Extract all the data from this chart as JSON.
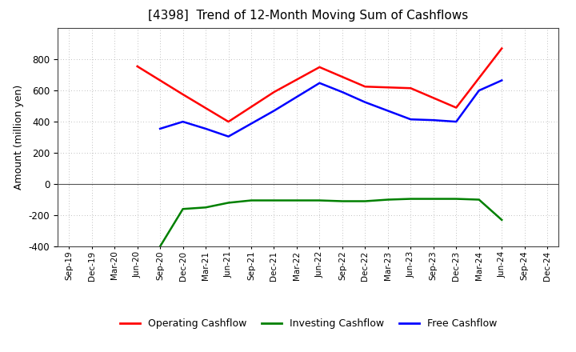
{
  "title": "[4398]  Trend of 12-Month Moving Sum of Cashflows",
  "ylabel": "Amount (million yen)",
  "ylim": [
    -400,
    1000
  ],
  "yticks": [
    -400,
    -200,
    0,
    200,
    400,
    600,
    800
  ],
  "x_labels": [
    "Sep-19",
    "Dec-19",
    "Mar-20",
    "Jun-20",
    "Sep-20",
    "Dec-20",
    "Mar-21",
    "Jun-21",
    "Sep-21",
    "Dec-21",
    "Mar-22",
    "Jun-22",
    "Sep-22",
    "Dec-22",
    "Mar-23",
    "Jun-23",
    "Sep-23",
    "Dec-23",
    "Mar-24",
    "Jun-24",
    "Sep-24",
    "Dec-24"
  ],
  "op_x": [
    3,
    5,
    7,
    9,
    11,
    13,
    15,
    17,
    19
  ],
  "op_y": [
    755,
    575,
    400,
    590,
    750,
    625,
    615,
    490,
    870
  ],
  "inv_x": [
    4,
    5,
    6,
    7,
    8,
    9,
    10,
    11,
    12,
    13,
    14,
    15,
    16,
    17,
    18,
    19
  ],
  "inv_y": [
    -400,
    -160,
    -150,
    -120,
    -105,
    -105,
    -105,
    -105,
    -110,
    -110,
    -100,
    -95,
    -95,
    -95,
    -100,
    -230
  ],
  "free_x": [
    4,
    5,
    6,
    7,
    9,
    11,
    12,
    13,
    15,
    16,
    17,
    18,
    19
  ],
  "free_y": [
    355,
    400,
    355,
    305,
    470,
    648,
    590,
    525,
    415,
    410,
    400,
    600,
    665
  ],
  "operating_color": "#ff0000",
  "investing_color": "#008000",
  "free_color": "#0000ff",
  "background_color": "#ffffff"
}
